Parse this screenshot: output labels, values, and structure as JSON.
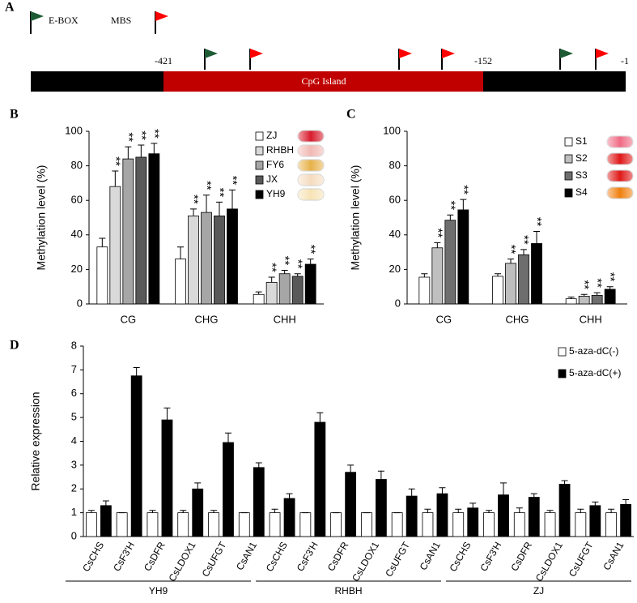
{
  "diagram": {
    "label": "A",
    "legend": [
      "E-BOX",
      "MBS"
    ],
    "positions": [
      -421,
      -152,
      -1
    ],
    "island_label": "CpG Island"
  },
  "chart_data": [
    {
      "type": "bar",
      "panel_label": "B",
      "y_label": "Methylation level (%)",
      "categories": [
        "CG",
        "CHG",
        "CHH"
      ],
      "ylim": [
        0,
        100
      ],
      "yticks": [
        0,
        20,
        40,
        60,
        80,
        100
      ],
      "series": [
        {
          "name": "ZJ",
          "color": "#ffffff",
          "values": [
            33,
            26,
            5.5
          ],
          "errors": [
            5,
            7,
            1.5
          ],
          "significance": [
            null,
            null,
            null
          ]
        },
        {
          "name": "RHBH",
          "color": "#d9d9d9",
          "values": [
            68,
            51,
            12.5
          ],
          "errors": [
            9,
            4,
            3
          ],
          "significance": [
            "**",
            "**",
            "**"
          ]
        },
        {
          "name": "FY6",
          "color": "#a6a6a6",
          "values": [
            84,
            53,
            17.5
          ],
          "errors": [
            7,
            10,
            2
          ],
          "significance": [
            "**",
            "**",
            "**"
          ]
        },
        {
          "name": "JX",
          "color": "#595959",
          "values": [
            85,
            51,
            16
          ],
          "errors": [
            7,
            8,
            1.5
          ],
          "significance": [
            "**",
            "**",
            "**"
          ]
        },
        {
          "name": "YH9",
          "color": "#000000",
          "values": [
            87,
            55,
            23
          ],
          "errors": [
            6,
            11,
            3
          ],
          "significance": [
            "**",
            "**",
            "**"
          ]
        }
      ]
    },
    {
      "type": "bar",
      "panel_label": "C",
      "y_label": "Methylation level (%)",
      "categories": [
        "CG",
        "CHG",
        "CHH"
      ],
      "ylim": [
        0,
        100
      ],
      "yticks": [
        0,
        20,
        40,
        60,
        80,
        100
      ],
      "series": [
        {
          "name": "S1",
          "color": "#ffffff",
          "values": [
            15.5,
            16,
            3
          ],
          "errors": [
            2,
            1.5,
            1
          ],
          "significance": [
            null,
            null,
            null
          ]
        },
        {
          "name": "S2",
          "color": "#bfbfbf",
          "values": [
            32.5,
            23.5,
            4.5
          ],
          "errors": [
            3,
            2.5,
            1
          ],
          "significance": [
            "**",
            "**",
            "**"
          ]
        },
        {
          "name": "S3",
          "color": "#6e6e6e",
          "values": [
            48.5,
            28.5,
            5
          ],
          "errors": [
            3,
            3,
            1.5
          ],
          "significance": [
            "**",
            "**",
            "**"
          ]
        },
        {
          "name": "S4",
          "color": "#000000",
          "values": [
            54.5,
            35,
            8.5
          ],
          "errors": [
            6,
            7,
            1.5
          ],
          "significance": [
            "**",
            "**",
            "**"
          ]
        }
      ]
    },
    {
      "type": "bar",
      "panel_label": "D",
      "y_label": "Relative expression",
      "categories": [
        "CsCHS",
        "CsF3'H",
        "CsDFR",
        "CsLDOX1",
        "CsUFGT",
        "CsAN1",
        "CsCHS",
        "CsF3'H",
        "CsDFR",
        "CsLDOX1",
        "CsUFGT",
        "CsAN1",
        "CsCHS",
        "CsF3'H",
        "CsDFR",
        "CsLDOX1",
        "CsUFGT",
        "CsAN1"
      ],
      "x_groups": [
        "YH9",
        "RHBH",
        "ZJ"
      ],
      "ylim": [
        0,
        8
      ],
      "yticks": [
        0,
        1,
        2,
        3,
        4,
        5,
        6,
        7,
        8
      ],
      "series": [
        {
          "name": "5-aza-dC(-)",
          "color": "#ffffff",
          "values": [
            1,
            1,
            1,
            1,
            1,
            1,
            1,
            1,
            1,
            1,
            1,
            1,
            1,
            1,
            1,
            1,
            1,
            1
          ],
          "errors": [
            0.1,
            0,
            0.1,
            0.1,
            0.1,
            0,
            0.15,
            0,
            0,
            0,
            0,
            0.15,
            0.15,
            0.1,
            0.2,
            0.1,
            0.15,
            0.15
          ]
        },
        {
          "name": "5-aza-dC(+)",
          "color": "#000000",
          "values": [
            1.3,
            6.75,
            4.9,
            2.0,
            3.95,
            2.9,
            1.6,
            4.8,
            2.7,
            2.4,
            1.7,
            1.8,
            1.2,
            1.75,
            1.65,
            2.2,
            1.3,
            1.35
          ],
          "errors": [
            0.2,
            0.35,
            0.5,
            0.25,
            0.4,
            0.2,
            0.2,
            0.4,
            0.3,
            0.35,
            0.3,
            0.25,
            0.2,
            0.5,
            0.15,
            0.15,
            0.15,
            0.2
          ]
        }
      ]
    }
  ]
}
